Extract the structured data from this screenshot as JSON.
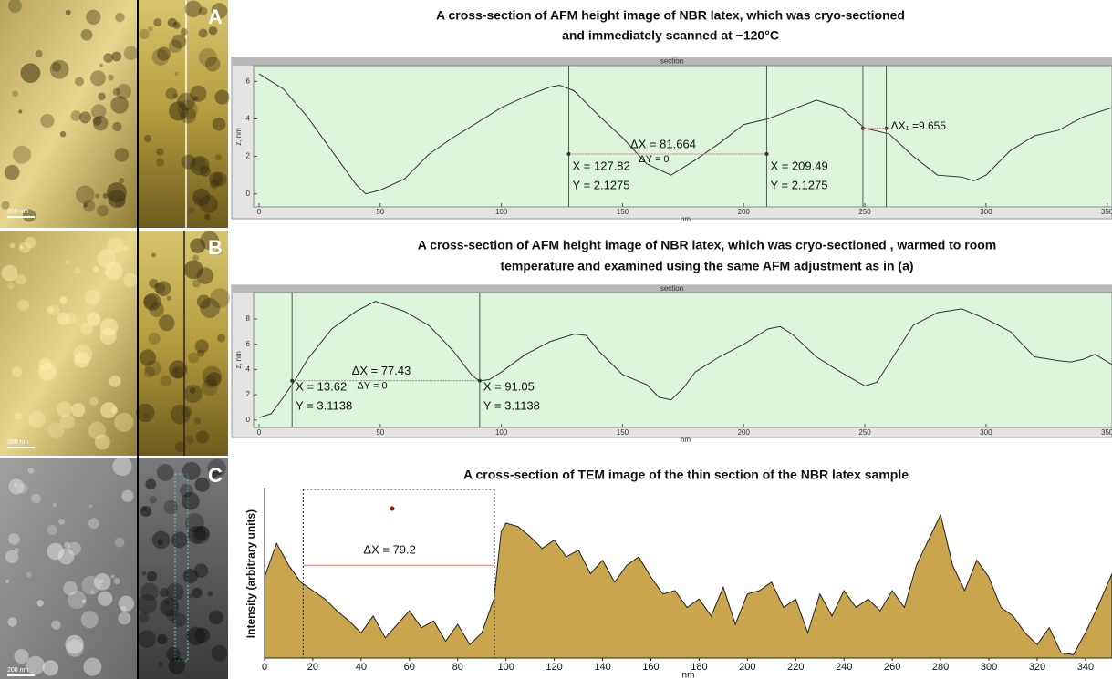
{
  "panels": [
    {
      "label": "A",
      "scale": "200 nm"
    },
    {
      "label": "B",
      "scale": "200 nm"
    },
    {
      "label": "C",
      "scale": "200 nm"
    }
  ],
  "chart_data": [
    {
      "type": "line",
      "title_lines": [
        "A cross-section of AFM height image of NBR latex,  which was  cryo-sectioned",
        "and immediately scanned at −120°C"
      ],
      "header": "section",
      "y_label": "z, nm",
      "x_label": "nm",
      "color": "#333333",
      "x": [
        0,
        10,
        20,
        30,
        40,
        44,
        50,
        60,
        70,
        80,
        90,
        100,
        110,
        120,
        124,
        130,
        140,
        150,
        160,
        170,
        180,
        190,
        200,
        210,
        220,
        230,
        240,
        250,
        260,
        270,
        280,
        290,
        295,
        300,
        310,
        320,
        330,
        340,
        352
      ],
      "values": [
        6.4,
        5.6,
        4.1,
        2.3,
        0.5,
        0.0,
        0.2,
        0.8,
        2.1,
        3.0,
        3.8,
        4.6,
        5.2,
        5.7,
        5.8,
        5.5,
        4.2,
        3.0,
        1.6,
        1.0,
        1.8,
        2.7,
        3.7,
        4.0,
        4.5,
        5.0,
        4.6,
        3.5,
        3.2,
        2.0,
        1.0,
        0.9,
        0.7,
        1.0,
        2.3,
        3.1,
        3.4,
        4.1,
        4.6
      ],
      "xlim": [
        0,
        352
      ],
      "ylim": [
        -0.5,
        6.6
      ],
      "xticks": [
        0,
        50,
        100,
        150,
        200,
        250,
        300,
        350
      ],
      "yticks": [
        0,
        2,
        4,
        6
      ],
      "cursors": [
        {
          "x": 127.82,
          "y": 2.1275,
          "x_label": "X = 127.82",
          "y_label": "Y = 2.1275"
        },
        {
          "x": 209.49,
          "y": 2.1275,
          "x_label": "X = 209.49",
          "y_label": "Y = 2.1275"
        }
      ],
      "delta": {
        "dx_label": "ΔX = 81.664",
        "dy_label": "ΔY = 0"
      },
      "cursors2": {
        "x": [
          249.2,
          258.855
        ],
        "y": 3.5,
        "label": "ΔX₁ =9.655"
      }
    },
    {
      "type": "line",
      "title_lines": [
        "A cross-section of AFM height image of NBR latex,  which was  cryo-sectioned , warmed to room",
        "temperature and examined using the same AFM adjustment as in (a)"
      ],
      "header": "section",
      "y_label": "z, nm",
      "x_label": "nm",
      "color": "#333333",
      "x": [
        0,
        5,
        10,
        15,
        20,
        30,
        40,
        48,
        60,
        70,
        80,
        88,
        91,
        95,
        100,
        110,
        120,
        130,
        135,
        140,
        150,
        160,
        165,
        170,
        175,
        180,
        190,
        200,
        210,
        215,
        220,
        230,
        240,
        250,
        255,
        260,
        270,
        280,
        290,
        300,
        310,
        320,
        330,
        335,
        340,
        345,
        352
      ],
      "values": [
        0.2,
        0.5,
        1.8,
        3.2,
        4.8,
        7.2,
        8.6,
        9.4,
        8.6,
        7.5,
        5.5,
        3.5,
        3.1,
        3.2,
        3.8,
        5.2,
        6.2,
        6.8,
        6.7,
        5.5,
        3.6,
        2.8,
        1.8,
        1.6,
        2.5,
        3.8,
        5.0,
        6.0,
        7.2,
        7.4,
        6.8,
        5.0,
        3.8,
        2.7,
        3.0,
        4.5,
        7.5,
        8.5,
        8.8,
        8.0,
        7.0,
        5.0,
        4.7,
        4.6,
        4.8,
        5.2,
        4.4
      ],
      "xlim": [
        0,
        352
      ],
      "ylim": [
        -0.3,
        9.8
      ],
      "xticks": [
        0,
        50,
        100,
        150,
        200,
        250,
        300,
        350
      ],
      "yticks": [
        0,
        2,
        4,
        6,
        8
      ],
      "cursors": [
        {
          "x": 13.62,
          "y": 3.1138,
          "x_label": "X = 13.62",
          "y_label": "Y = 3.1138"
        },
        {
          "x": 91.05,
          "y": 3.1138,
          "x_label": "X = 91.05",
          "y_label": "Y = 3.1138"
        }
      ],
      "delta": {
        "dx_label": "ΔX = 77.43",
        "dy_label": "ΔY = 0"
      }
    },
    {
      "type": "area",
      "title_lines": [
        "A cross-section of TEM image of the thin section of the NBR latex sample"
      ],
      "y_label": "Intensity (arbitrary units)",
      "x_label": "nm",
      "color": "#c9a64d",
      "x": [
        0,
        5,
        10,
        15,
        20,
        25,
        30,
        35,
        40,
        45,
        50,
        55,
        60,
        65,
        70,
        75,
        80,
        85,
        90,
        95,
        98,
        100,
        105,
        110,
        115,
        120,
        125,
        130,
        135,
        140,
        145,
        150,
        155,
        160,
        165,
        170,
        175,
        180,
        185,
        190,
        195,
        200,
        205,
        210,
        215,
        220,
        225,
        230,
        235,
        240,
        245,
        250,
        255,
        260,
        265,
        270,
        275,
        280,
        285,
        290,
        295,
        300,
        305,
        310,
        315,
        320,
        325,
        330,
        335,
        340,
        345,
        351
      ],
      "values": [
        48,
        68,
        55,
        45,
        40,
        35,
        28,
        22,
        15,
        25,
        12,
        20,
        28,
        18,
        22,
        10,
        20,
        8,
        15,
        35,
        75,
        80,
        78,
        72,
        65,
        70,
        60,
        64,
        50,
        58,
        45,
        55,
        60,
        48,
        38,
        40,
        30,
        35,
        25,
        42,
        20,
        38,
        40,
        45,
        30,
        35,
        15,
        38,
        25,
        40,
        30,
        35,
        28,
        40,
        30,
        55,
        70,
        85,
        55,
        40,
        58,
        48,
        30,
        25,
        15,
        8,
        18,
        3,
        2,
        15,
        30,
        50
      ],
      "xlim": [
        0,
        351
      ],
      "ylim": [
        0,
        100
      ],
      "xticks": [
        0,
        20,
        40,
        60,
        80,
        100,
        120,
        140,
        160,
        180,
        200,
        220,
        240,
        260,
        280,
        300,
        320,
        340
      ],
      "marker_x": [
        16,
        95.2
      ],
      "marker_y": 55,
      "marker_label": "ΔX = 79.2"
    }
  ]
}
